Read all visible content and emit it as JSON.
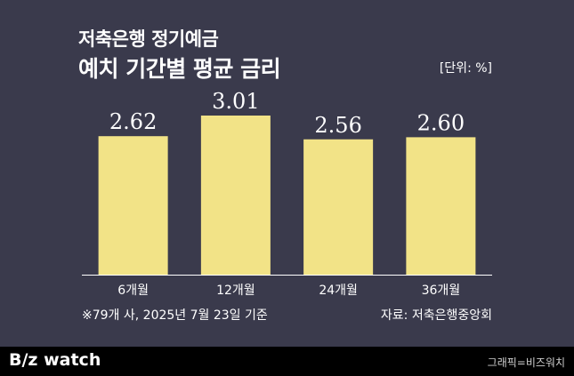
{
  "header": {
    "title_line1": "저축은행 정기예금",
    "title_line2": "예치 기간별 평균 금리",
    "unit": "[단위: %]"
  },
  "footnote": "※79개 사, 2025년 7월 23일 기준",
  "source": "자료: 저축은행중앙회",
  "footer": {
    "logo": "B/z watch",
    "credit": "그래픽=비즈워치"
  },
  "colors": {
    "background": "#3a3a4c",
    "bar": "#f2e387",
    "footer": "#000000"
  },
  "chart_data": {
    "type": "bar",
    "categories": [
      "6개월",
      "12개월",
      "24개월",
      "36개월"
    ],
    "values": [
      2.62,
      3.01,
      2.56,
      2.6
    ],
    "data_labels": [
      "2.62",
      "3.01",
      "2.56",
      "2.60"
    ],
    "ylim": [
      0,
      3.01
    ],
    "grid": false,
    "legend": "none"
  }
}
